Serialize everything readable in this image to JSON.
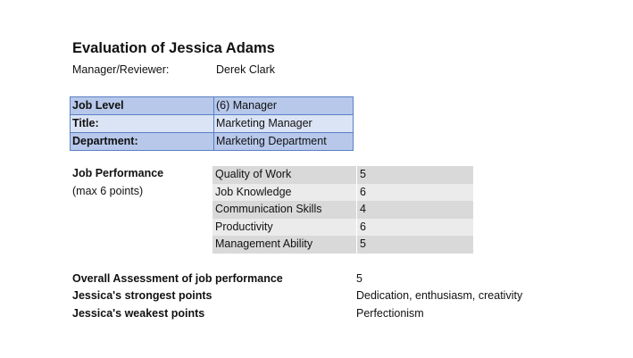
{
  "header": {
    "title": "Evaluation of Jessica Adams",
    "manager_label": "Manager/Reviewer:",
    "manager_value": "Derek Clark"
  },
  "info_table": [
    {
      "label": "Job Level",
      "value": "(6) Manager"
    },
    {
      "label": "Title:",
      "value": "Marketing Manager"
    },
    {
      "label": "Department:",
      "value": "Marketing Department"
    }
  ],
  "performance": {
    "label": "Job Performance",
    "note": "(max 6 points)",
    "scores": [
      {
        "name": "Quality of Work",
        "value": "5"
      },
      {
        "name": "Job Knowledge",
        "value": "6"
      },
      {
        "name": "Communication Skills",
        "value": "4"
      },
      {
        "name": "Productivity",
        "value": "6"
      },
      {
        "name": "Management Ability",
        "value": "5"
      }
    ]
  },
  "summary": [
    {
      "label": "Overall Assessment of job performance",
      "value": "5"
    },
    {
      "label": "Jessica's strongest points",
      "value": "Dedication, enthusiasm, creativity"
    },
    {
      "label": "Jessica's weakest points",
      "value": "Perfectionism"
    }
  ],
  "colors": {
    "info_border": "#5a7fc4",
    "info_row_dark": "#b7c8ea",
    "info_row_light": "#dbe4f5",
    "score_row_dark": "#d9d9d9",
    "score_row_light": "#ebebeb"
  }
}
